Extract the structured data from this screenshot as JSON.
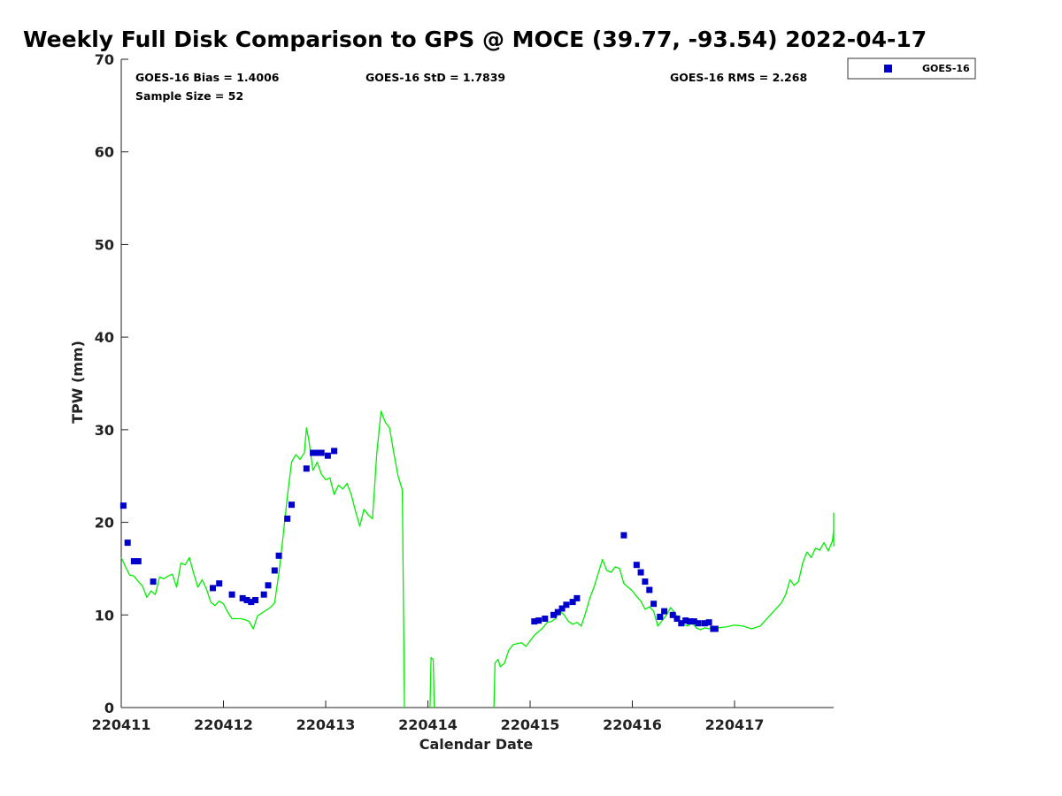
{
  "chart_data": {
    "type": "scatter",
    "title": "Weekly Full Disk Comparison to GPS @ MOCE (39.77, -93.54) 2022-04-17",
    "xlabel": "Calendar Date",
    "ylabel": "TPW (mm)",
    "ylim": [
      0,
      70
    ],
    "xlim": [
      "2022-04-11T00:00",
      "2022-04-17T23:59"
    ],
    "yticks": [
      "0",
      "10",
      "20",
      "30",
      "40",
      "50",
      "60",
      "70"
    ],
    "xticks": [
      {
        "t": "2022-04-11T00:00",
        "label": "220411"
      },
      {
        "t": "2022-04-12T00:00",
        "label": "220412"
      },
      {
        "t": "2022-04-13T00:00",
        "label": "220413"
      },
      {
        "t": "2022-04-14T00:00",
        "label": "220414"
      },
      {
        "t": "2022-04-15T00:00",
        "label": "220415"
      },
      {
        "t": "2022-04-16T00:00",
        "label": "220416"
      },
      {
        "t": "2022-04-17T00:00",
        "label": "220417"
      }
    ],
    "grid": false,
    "legend_position": "top-right",
    "stats": {
      "bias": "GOES-16 Bias = 1.4006",
      "std": "GOES-16 StD = 1.7839",
      "rms": "GOES-16 RMS = 2.268",
      "sample": "Sample Size = 52"
    },
    "series": [
      {
        "name": "GOES-16",
        "kind": "scatter",
        "color": "#0000cc",
        "marker": "square",
        "points": [
          [
            "2022-04-11T00:30",
            21.8
          ],
          [
            "2022-04-11T01:30",
            17.8
          ],
          [
            "2022-04-11T03:00",
            15.8
          ],
          [
            "2022-04-11T04:00",
            15.8
          ],
          [
            "2022-04-11T07:30",
            13.6
          ],
          [
            "2022-04-11T21:30",
            12.9
          ],
          [
            "2022-04-11T23:00",
            13.4
          ],
          [
            "2022-04-12T02:00",
            12.2
          ],
          [
            "2022-04-12T04:30",
            11.8
          ],
          [
            "2022-04-12T05:30",
            11.6
          ],
          [
            "2022-04-12T06:30",
            11.4
          ],
          [
            "2022-04-12T07:30",
            11.6
          ],
          [
            "2022-04-12T09:30",
            12.2
          ],
          [
            "2022-04-12T10:30",
            13.2
          ],
          [
            "2022-04-12T12:00",
            14.8
          ],
          [
            "2022-04-12T13:00",
            16.4
          ],
          [
            "2022-04-12T15:00",
            20.4
          ],
          [
            "2022-04-12T16:00",
            21.9
          ],
          [
            "2022-04-12T19:30",
            25.8
          ],
          [
            "2022-04-12T21:00",
            27.5
          ],
          [
            "2022-04-12T22:00",
            27.5
          ],
          [
            "2022-04-12T23:00",
            27.5
          ],
          [
            "2022-04-13T00:30",
            27.2
          ],
          [
            "2022-04-13T02:00",
            27.7
          ],
          [
            "2022-04-15T01:00",
            9.3
          ],
          [
            "2022-04-15T02:00",
            9.4
          ],
          [
            "2022-04-15T03:30",
            9.6
          ],
          [
            "2022-04-15T05:30",
            10.0
          ],
          [
            "2022-04-15T06:30",
            10.3
          ],
          [
            "2022-04-15T07:30",
            10.7
          ],
          [
            "2022-04-15T08:30",
            11.1
          ],
          [
            "2022-04-15T10:00",
            11.4
          ],
          [
            "2022-04-15T11:00",
            11.8
          ],
          [
            "2022-04-15T22:00",
            18.6
          ],
          [
            "2022-04-16T01:00",
            15.4
          ],
          [
            "2022-04-16T02:00",
            14.6
          ],
          [
            "2022-04-16T03:00",
            13.6
          ],
          [
            "2022-04-16T04:00",
            12.7
          ],
          [
            "2022-04-16T05:00",
            11.2
          ],
          [
            "2022-04-16T06:30",
            9.8
          ],
          [
            "2022-04-16T07:30",
            10.4
          ],
          [
            "2022-04-16T09:30",
            10.0
          ],
          [
            "2022-04-16T10:30",
            9.6
          ],
          [
            "2022-04-16T11:30",
            9.1
          ],
          [
            "2022-04-16T12:30",
            9.4
          ],
          [
            "2022-04-16T13:30",
            9.3
          ],
          [
            "2022-04-16T14:30",
            9.3
          ],
          [
            "2022-04-16T15:30",
            9.1
          ],
          [
            "2022-04-16T17:00",
            9.1
          ],
          [
            "2022-04-16T18:00",
            9.2
          ],
          [
            "2022-04-16T19:00",
            8.5
          ],
          [
            "2022-04-16T19:30",
            8.5
          ]
        ]
      },
      {
        "name": "GPS",
        "kind": "line",
        "color": "#00ee00",
        "segments": [
          [
            [
              "2022-04-11T00:00",
              16.2
            ],
            [
              "2022-04-11T01:00",
              15.2
            ],
            [
              "2022-04-11T02:00",
              14.3
            ],
            [
              "2022-04-11T03:00",
              14.2
            ],
            [
              "2022-04-11T04:00",
              13.6
            ],
            [
              "2022-04-11T05:00",
              13.1
            ],
            [
              "2022-04-11T06:00",
              11.9
            ],
            [
              "2022-04-11T07:00",
              12.6
            ],
            [
              "2022-04-11T08:00",
              12.2
            ],
            [
              "2022-04-11T09:00",
              14.1
            ],
            [
              "2022-04-11T10:00",
              13.9
            ],
            [
              "2022-04-11T11:00",
              14.2
            ],
            [
              "2022-04-11T12:00",
              14.4
            ],
            [
              "2022-04-11T13:00",
              13.0
            ],
            [
              "2022-04-11T14:00",
              15.6
            ],
            [
              "2022-04-11T15:00",
              15.4
            ],
            [
              "2022-04-11T16:00",
              16.2
            ],
            [
              "2022-04-11T17:00",
              14.5
            ],
            [
              "2022-04-11T18:00",
              13.0
            ],
            [
              "2022-04-11T19:00",
              13.8
            ],
            [
              "2022-04-11T20:00",
              12.8
            ],
            [
              "2022-04-11T21:00",
              11.4
            ],
            [
              "2022-04-11T22:00",
              11.0
            ],
            [
              "2022-04-11T23:00",
              11.5
            ],
            [
              "2022-04-12T00:00",
              11.2
            ],
            [
              "2022-04-12T01:00",
              10.3
            ],
            [
              "2022-04-12T02:00",
              9.6
            ],
            [
              "2022-04-12T03:00",
              9.6
            ],
            [
              "2022-04-12T04:00",
              9.6
            ],
            [
              "2022-04-12T05:00",
              9.5
            ],
            [
              "2022-04-12T06:00",
              9.3
            ],
            [
              "2022-04-12T07:00",
              8.5
            ],
            [
              "2022-04-12T08:00",
              9.9
            ],
            [
              "2022-04-12T09:00",
              10.2
            ],
            [
              "2022-04-12T10:00",
              10.5
            ],
            [
              "2022-04-12T11:00",
              10.8
            ],
            [
              "2022-04-12T12:00",
              11.3
            ],
            [
              "2022-04-12T13:00",
              14.5
            ],
            [
              "2022-04-12T14:00",
              18.5
            ],
            [
              "2022-04-12T15:00",
              22.8
            ],
            [
              "2022-04-12T16:00",
              26.5
            ],
            [
              "2022-04-12T17:00",
              27.3
            ],
            [
              "2022-04-12T18:00",
              26.8
            ],
            [
              "2022-04-12T19:00",
              27.5
            ],
            [
              "2022-04-12T19:30",
              30.2
            ],
            [
              "2022-04-12T20:00",
              29.0
            ],
            [
              "2022-04-12T21:00",
              25.6
            ],
            [
              "2022-04-12T22:00",
              26.5
            ],
            [
              "2022-04-12T23:00",
              25.2
            ],
            [
              "2022-04-13T00:00",
              24.6
            ],
            [
              "2022-04-13T01:00",
              24.8
            ],
            [
              "2022-04-13T02:00",
              23.0
            ],
            [
              "2022-04-13T03:00",
              24.0
            ],
            [
              "2022-04-13T04:00",
              23.6
            ],
            [
              "2022-04-13T05:00",
              24.2
            ],
            [
              "2022-04-13T06:00",
              23.0
            ],
            [
              "2022-04-13T07:00",
              21.2
            ],
            [
              "2022-04-13T08:00",
              19.6
            ],
            [
              "2022-04-13T09:00",
              21.4
            ],
            [
              "2022-04-13T10:00",
              20.8
            ],
            [
              "2022-04-13T11:00",
              20.4
            ],
            [
              "2022-04-13T12:00",
              27.5
            ],
            [
              "2022-04-13T13:00",
              32.0
            ],
            [
              "2022-04-13T14:00",
              30.8
            ],
            [
              "2022-04-13T15:00",
              30.2
            ],
            [
              "2022-04-13T16:00",
              27.5
            ],
            [
              "2022-04-13T17:00",
              25.0
            ],
            [
              "2022-04-13T18:00",
              23.5
            ],
            [
              "2022-04-13T18:30",
              0
            ]
          ],
          [
            [
              "2022-04-14T00:30",
              0
            ],
            [
              "2022-04-14T00:45",
              5.4
            ],
            [
              "2022-04-14T01:15",
              5.2
            ],
            [
              "2022-04-14T01:30",
              0
            ]
          ],
          [
            [
              "2022-04-14T15:30",
              0
            ],
            [
              "2022-04-14T15:45",
              4.8
            ],
            [
              "2022-04-14T16:30",
              5.2
            ],
            [
              "2022-04-14T17:00",
              4.4
            ],
            [
              "2022-04-14T18:00",
              4.8
            ],
            [
              "2022-04-14T19:00",
              6.2
            ],
            [
              "2022-04-14T20:00",
              6.8
            ],
            [
              "2022-04-14T21:00",
              6.9
            ],
            [
              "2022-04-14T22:00",
              7.0
            ],
            [
              "2022-04-14T23:00",
              6.6
            ],
            [
              "2022-04-15T00:00",
              7.2
            ],
            [
              "2022-04-15T01:00",
              7.8
            ],
            [
              "2022-04-15T02:00",
              8.2
            ],
            [
              "2022-04-15T03:00",
              8.6
            ],
            [
              "2022-04-15T04:00",
              9.2
            ],
            [
              "2022-04-15T05:00",
              9.3
            ],
            [
              "2022-04-15T06:00",
              9.6
            ],
            [
              "2022-04-15T07:00",
              10.4
            ],
            [
              "2022-04-15T08:00",
              10.0
            ],
            [
              "2022-04-15T09:00",
              9.3
            ],
            [
              "2022-04-15T10:00",
              9.0
            ],
            [
              "2022-04-15T11:00",
              9.2
            ],
            [
              "2022-04-15T12:00",
              8.8
            ],
            [
              "2022-04-15T13:00",
              10.2
            ],
            [
              "2022-04-15T14:00",
              11.8
            ],
            [
              "2022-04-15T15:00",
              13.0
            ],
            [
              "2022-04-15T16:00",
              14.5
            ],
            [
              "2022-04-15T17:00",
              16.0
            ],
            [
              "2022-04-15T18:00",
              14.8
            ],
            [
              "2022-04-15T19:00",
              14.6
            ],
            [
              "2022-04-15T20:00",
              15.2
            ],
            [
              "2022-04-15T21:00",
              15.0
            ],
            [
              "2022-04-15T22:00",
              13.4
            ],
            [
              "2022-04-15T23:00",
              13.0
            ],
            [
              "2022-04-16T00:00",
              12.6
            ],
            [
              "2022-04-16T01:00",
              12.0
            ],
            [
              "2022-04-16T02:00",
              11.5
            ],
            [
              "2022-04-16T03:00",
              10.6
            ],
            [
              "2022-04-16T04:00",
              10.9
            ],
            [
              "2022-04-16T05:00",
              10.4
            ],
            [
              "2022-04-16T06:00",
              8.8
            ],
            [
              "2022-04-16T07:00",
              9.4
            ],
            [
              "2022-04-16T08:00",
              10.0
            ],
            [
              "2022-04-16T09:00",
              10.8
            ],
            [
              "2022-04-16T10:00",
              10.2
            ],
            [
              "2022-04-16T11:00",
              9.4
            ],
            [
              "2022-04-16T12:00",
              9.0
            ],
            [
              "2022-04-16T13:00",
              8.8
            ],
            [
              "2022-04-16T14:00",
              9.2
            ],
            [
              "2022-04-16T15:00",
              8.6
            ],
            [
              "2022-04-16T16:00",
              8.4
            ],
            [
              "2022-04-16T17:00",
              8.6
            ],
            [
              "2022-04-16T18:00",
              8.5
            ],
            [
              "2022-04-16T19:00",
              8.8
            ],
            [
              "2022-04-16T20:00",
              8.6
            ],
            [
              "2022-04-16T22:00",
              8.7
            ],
            [
              "2022-04-17T00:00",
              8.9
            ],
            [
              "2022-04-17T02:00",
              8.8
            ],
            [
              "2022-04-17T04:00",
              8.5
            ],
            [
              "2022-04-17T06:00",
              8.8
            ],
            [
              "2022-04-17T08:00",
              9.8
            ],
            [
              "2022-04-17T10:00",
              10.8
            ],
            [
              "2022-04-17T11:00",
              11.3
            ],
            [
              "2022-04-17T12:00",
              12.2
            ],
            [
              "2022-04-17T13:00",
              13.8
            ],
            [
              "2022-04-17T14:00",
              13.2
            ],
            [
              "2022-04-17T15:00",
              13.6
            ],
            [
              "2022-04-17T16:00",
              15.6
            ],
            [
              "2022-04-17T17:00",
              16.8
            ],
            [
              "2022-04-17T18:00",
              16.2
            ],
            [
              "2022-04-17T19:00",
              17.2
            ],
            [
              "2022-04-17T20:00",
              17.0
            ],
            [
              "2022-04-17T21:00",
              17.8
            ],
            [
              "2022-04-17T22:00",
              16.9
            ],
            [
              "2022-04-17T23:00",
              18.0
            ],
            [
              "2022-04-18T00:00",
              19.2
            ],
            [
              "2022-04-18T01:00",
              18.8
            ],
            [
              "2022-04-18T02:00",
              19.6
            ],
            [
              "2022-04-18T03:00",
              21.0
            ],
            [
              "2022-04-18T04:00",
              18.6
            ],
            [
              "2022-04-18T04:30",
              17.4
            ]
          ]
        ]
      }
    ]
  }
}
